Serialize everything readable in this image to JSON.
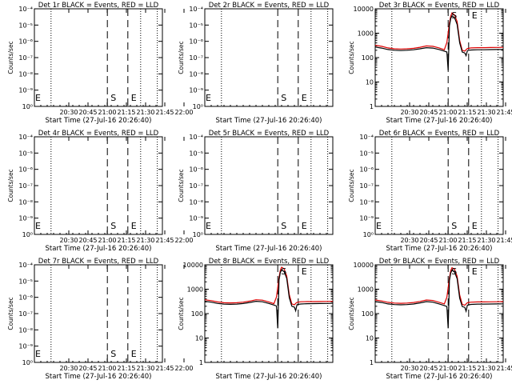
{
  "common": {
    "xlabel": "Start Time (27-Jul-16 20:26:40)",
    "ylabel": "Counts/sec",
    "x_ticks": [
      "20:30",
      "20:45",
      "21:00",
      "21:15",
      "21:30",
      "21:45",
      "22:00"
    ],
    "x_range_minutes_after_2030": [
      0,
      100
    ],
    "dotted_vlines_minutes": [
      13,
      83,
      96
    ],
    "dashed_vlines_minutes": [
      57,
      73
    ],
    "markers": [
      {
        "label": "S",
        "x_minutes": 57
      },
      {
        "label": "E",
        "x_minutes": 73
      }
    ],
    "black_color": "#000000",
    "red_color": "#dd0000"
  },
  "chart_data": [
    {
      "panel": "1r",
      "title": "Det 1r BLACK = Events, RED = LLD",
      "type": "line",
      "scale": "empty",
      "y_ticks": [
        "10⁻⁴",
        "10⁻⁵",
        "10⁻⁶",
        "10⁻⁷",
        "10⁻⁸",
        "10⁻⁹",
        "10⁰"
      ],
      "edge_marker": "E",
      "series": []
    },
    {
      "panel": "2r",
      "title": "Det 2r BLACK = Events, RED = LLD",
      "type": "line",
      "scale": "empty",
      "y_ticks": [
        "10⁻⁴",
        "10⁻⁵",
        "10⁻⁶",
        "10⁻⁷",
        "10⁻⁸",
        "10⁻⁹",
        "10⁰"
      ],
      "edge_marker": "E",
      "series": []
    },
    {
      "panel": "3r",
      "title": "Det 3r BLACK = Events, RED = LLD",
      "type": "line",
      "scale": "log",
      "y_ticks": [
        "10000",
        "1000",
        "100",
        "10",
        "1"
      ],
      "ylim": [
        1,
        10000
      ],
      "series": [
        {
          "color": "red",
          "x": [
            0,
            5,
            10,
            15,
            20,
            25,
            30,
            35,
            40,
            45,
            50,
            54,
            56,
            58,
            59,
            60,
            62,
            64,
            66,
            68,
            70,
            71,
            72,
            73,
            75,
            80,
            85,
            90,
            95,
            100
          ],
          "y": [
            320,
            290,
            250,
            230,
            225,
            230,
            240,
            265,
            300,
            290,
            250,
            210,
            420,
            2600,
            5000,
            6800,
            5600,
            3000,
            500,
            200,
            185,
            210,
            235,
            240,
            250,
            255,
            255,
            258,
            260,
            262
          ]
        },
        {
          "color": "black",
          "x": [
            0,
            5,
            10,
            15,
            20,
            25,
            30,
            35,
            40,
            45,
            50,
            54,
            56,
            57,
            58,
            59,
            60,
            62,
            64,
            66,
            68,
            70,
            71,
            72,
            73,
            75,
            80,
            85,
            90,
            95,
            100
          ],
          "y": [
            270,
            245,
            215,
            200,
            195,
            200,
            210,
            230,
            255,
            245,
            215,
            185,
            170,
            30,
            2000,
            4000,
            5200,
            4300,
            2300,
            400,
            170,
            155,
            120,
            190,
            200,
            205,
            210,
            210,
            212,
            214,
            216
          ]
        }
      ]
    },
    {
      "panel": "4r",
      "title": "Det 4r BLACK = Events, RED = LLD",
      "type": "line",
      "scale": "empty",
      "y_ticks": [
        "10⁻⁴",
        "10⁻⁵",
        "10⁻⁶",
        "10⁻⁷",
        "10⁻⁸",
        "10⁻⁹",
        "10⁰"
      ],
      "edge_marker": "E",
      "series": []
    },
    {
      "panel": "5r",
      "title": "Det 5r BLACK = Events, RED = LLD",
      "type": "line",
      "scale": "empty",
      "y_ticks": [
        "10⁻⁴",
        "10⁻⁵",
        "10⁻⁶",
        "10⁻⁷",
        "10⁻⁸",
        "10⁻⁹",
        "10⁰"
      ],
      "edge_marker": "E",
      "series": []
    },
    {
      "panel": "6r",
      "title": "Det 6r BLACK = Events, RED = LLD",
      "type": "line",
      "scale": "empty",
      "y_ticks": [
        "10⁻⁴",
        "10⁻⁵",
        "10⁻⁶",
        "10⁻⁷",
        "10⁻⁸",
        "10⁻⁹",
        "10⁰"
      ],
      "edge_marker": "E",
      "series": []
    },
    {
      "panel": "7r",
      "title": "Det 7r BLACK = Events, RED = LLD",
      "type": "line",
      "scale": "empty",
      "y_ticks": [
        "10⁻⁴",
        "10⁻⁵",
        "10⁻⁶",
        "10⁻⁷",
        "10⁻⁸",
        "10⁻⁹",
        "10⁰"
      ],
      "edge_marker": "E",
      "series": []
    },
    {
      "panel": "8r",
      "title": "Det 8r BLACK = Events, RED = LLD",
      "type": "line",
      "scale": "log",
      "y_ticks": [
        "10000",
        "1000",
        "100",
        "10",
        "1"
      ],
      "ylim": [
        1,
        10000
      ],
      "series": [
        {
          "color": "red",
          "x": [
            0,
            5,
            10,
            15,
            20,
            25,
            30,
            35,
            40,
            45,
            50,
            54,
            56,
            58,
            59,
            60,
            62,
            64,
            66,
            68,
            70,
            71,
            72,
            73,
            75,
            80,
            85,
            90,
            95,
            100
          ],
          "y": [
            370,
            340,
            300,
            280,
            275,
            280,
            295,
            325,
            370,
            355,
            300,
            255,
            480,
            3000,
            6000,
            8000,
            6800,
            3500,
            600,
            250,
            230,
            260,
            290,
            295,
            305,
            310,
            310,
            312,
            315,
            318
          ]
        },
        {
          "color": "black",
          "x": [
            0,
            5,
            10,
            15,
            20,
            25,
            30,
            35,
            40,
            45,
            50,
            54,
            56,
            57,
            58,
            59,
            60,
            62,
            64,
            66,
            68,
            70,
            71,
            72,
            73,
            75,
            80,
            85,
            90,
            95,
            100
          ],
          "y": [
            320,
            295,
            260,
            245,
            240,
            245,
            258,
            285,
            320,
            305,
            260,
            225,
            205,
            25,
            2400,
            4800,
            6200,
            5200,
            2800,
            450,
            200,
            185,
            130,
            230,
            240,
            248,
            255,
            256,
            258,
            260,
            262
          ]
        }
      ]
    },
    {
      "panel": "9r",
      "title": "Det 9r BLACK = Events, RED = LLD",
      "type": "line",
      "scale": "log",
      "y_ticks": [
        "10000",
        "1000",
        "100",
        "10",
        "1"
      ],
      "ylim": [
        1,
        10000
      ],
      "series": [
        {
          "color": "red",
          "x": [
            0,
            5,
            10,
            15,
            20,
            25,
            30,
            35,
            40,
            45,
            50,
            54,
            56,
            58,
            59,
            60,
            62,
            64,
            66,
            68,
            70,
            71,
            72,
            73,
            75,
            80,
            85,
            90,
            95,
            100
          ],
          "y": [
            360,
            330,
            290,
            270,
            265,
            270,
            285,
            315,
            360,
            345,
            290,
            250,
            470,
            2900,
            5800,
            7600,
            6500,
            3400,
            580,
            240,
            220,
            250,
            280,
            285,
            295,
            300,
            300,
            303,
            306,
            310
          ]
        },
        {
          "color": "black",
          "x": [
            0,
            5,
            10,
            15,
            20,
            25,
            30,
            35,
            40,
            45,
            50,
            54,
            56,
            57,
            58,
            59,
            60,
            62,
            64,
            66,
            68,
            70,
            71,
            72,
            73,
            75,
            80,
            85,
            90,
            95,
            100
          ],
          "y": [
            310,
            285,
            250,
            235,
            230,
            235,
            248,
            275,
            310,
            295,
            250,
            215,
            195,
            25,
            2300,
            4600,
            6000,
            5000,
            2700,
            430,
            195,
            180,
            125,
            220,
            230,
            238,
            245,
            246,
            248,
            250,
            252
          ]
        }
      ]
    }
  ]
}
